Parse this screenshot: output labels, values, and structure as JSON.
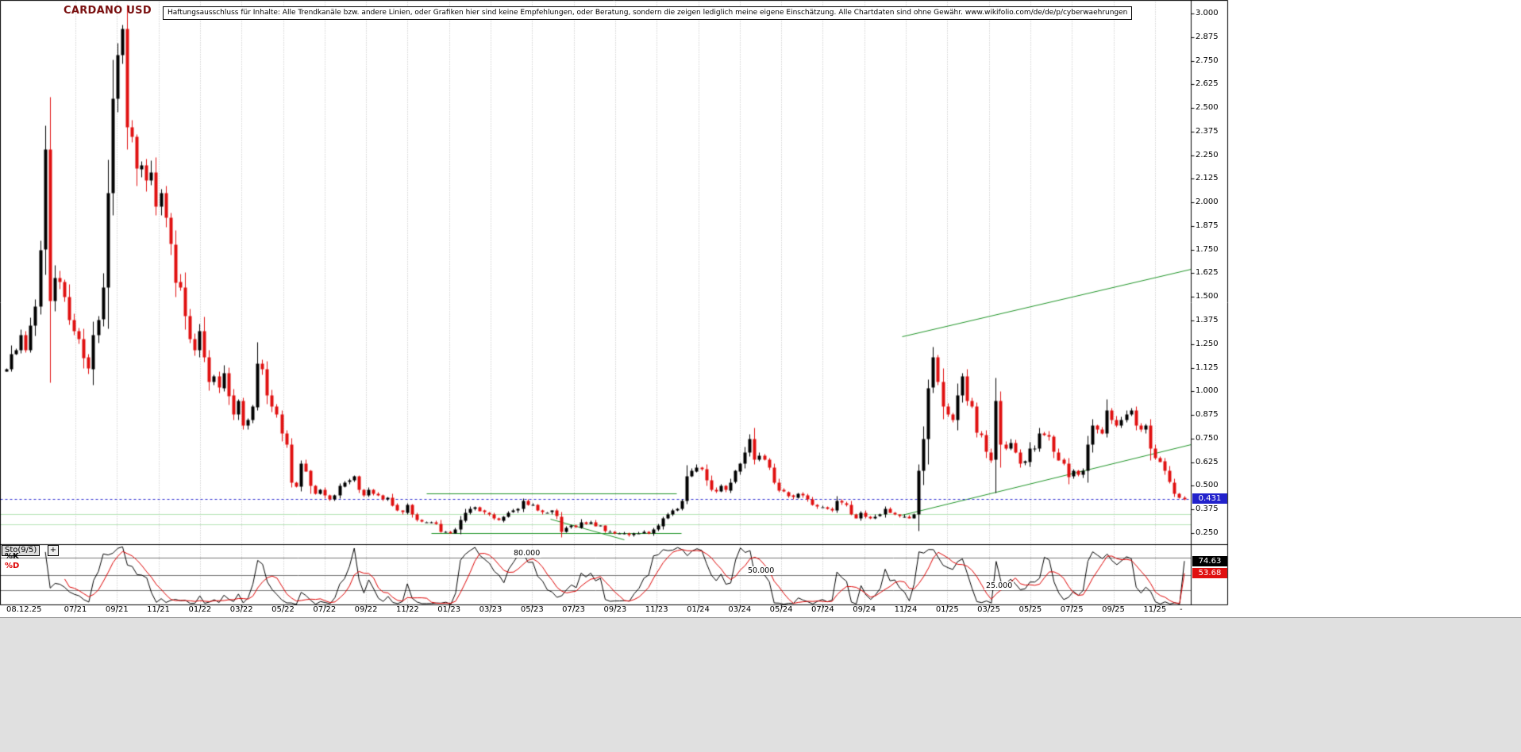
{
  "header": {
    "title": "CARDANO USD",
    "disclaimer": "Haftungsausschluss für Inhalte: Alle Trendkanäle bzw. andere Linien, oder Grafiken hier sind keine Empfehlungen, oder Beratung, sondern die zeigen lediglich meine eigene Einschätzung. Alle Chartdaten sind ohne Gewähr.  www.wikifolio.com/de/de/p/cyberwaehrungen"
  },
  "colors": {
    "up_candle": "#000000",
    "down_candle": "#e01010",
    "k_line": "#000000",
    "d_line": "#dd0000",
    "trend_line": "#1f9427",
    "pale_level": "#b5e3b5",
    "price_line": "#2a2ad0",
    "price_badge_bg": "#2222cc",
    "k_badge_bg": "#000000",
    "d_badge_bg": "#e01010",
    "title_color": "#7a1010",
    "grid": "#b8b8b8",
    "level_line": "#777777",
    "footer_bg": "#e0e0e0"
  },
  "chart_data": [
    {
      "type": "candlestick",
      "title": "CARDANO USD",
      "interval": "weekly",
      "y_axis": {
        "min": 0.25,
        "max": 3.0,
        "step": 0.125,
        "tick_labels": [
          "3.000",
          "2.875",
          "2.750",
          "2.625",
          "2.500",
          "2.375",
          "2.250",
          "2.125",
          "2.000",
          "1.875",
          "1.750",
          "1.625",
          "1.500",
          "1.375",
          "1.250",
          "1.125",
          "1.000",
          "0.875",
          "0.750",
          "0.625",
          "0.500",
          "0.375",
          "0.250"
        ]
      },
      "x_axis": {
        "date_stamp": "08.12.25",
        "tick_labels": [
          "07/21",
          "09/21",
          "11/21",
          "01/22",
          "03/22",
          "05/22",
          "07/22",
          "09/22",
          "11/22",
          "01/23",
          "03/23",
          "05/23",
          "07/23",
          "09/23",
          "11/23",
          "01/24",
          "03/24",
          "05/24",
          "07/24",
          "09/24",
          "11/24",
          "01/25",
          "03/25",
          "05/25",
          "07/25",
          "09/25",
          "11/25"
        ],
        "end_mark": "-"
      },
      "current_price": 0.431,
      "current_price_label": "0.431",
      "closes": [
        1.12,
        1.2,
        1.22,
        1.3,
        1.22,
        1.35,
        1.45,
        1.75,
        2.28,
        1.48,
        1.6,
        1.58,
        1.5,
        1.38,
        1.32,
        1.28,
        1.18,
        1.12,
        1.3,
        1.38,
        1.55,
        2.05,
        2.55,
        2.78,
        2.92,
        2.4,
        2.35,
        2.18,
        2.2,
        2.12,
        2.16,
        1.98,
        2.05,
        1.92,
        1.78,
        1.58,
        1.55,
        1.4,
        1.28,
        1.22,
        1.32,
        1.18,
        1.05,
        1.08,
        1.02,
        1.1,
        0.98,
        0.88,
        0.95,
        0.82,
        0.85,
        0.92,
        1.15,
        1.12,
        0.98,
        0.92,
        0.88,
        0.78,
        0.72,
        0.52,
        0.5,
        0.62,
        0.58,
        0.5,
        0.46,
        0.48,
        0.45,
        0.43,
        0.45,
        0.5,
        0.52,
        0.53,
        0.55,
        0.48,
        0.45,
        0.48,
        0.46,
        0.45,
        0.43,
        0.44,
        0.4,
        0.37,
        0.36,
        0.4,
        0.35,
        0.32,
        0.31,
        0.31,
        0.31,
        0.3,
        0.26,
        0.26,
        0.25,
        0.27,
        0.32,
        0.36,
        0.38,
        0.39,
        0.37,
        0.36,
        0.35,
        0.33,
        0.32,
        0.34,
        0.36,
        0.37,
        0.38,
        0.42,
        0.4,
        0.4,
        0.37,
        0.36,
        0.36,
        0.37,
        0.34,
        0.26,
        0.28,
        0.29,
        0.28,
        0.31,
        0.3,
        0.31,
        0.29,
        0.29,
        0.26,
        0.26,
        0.25,
        0.25,
        0.25,
        0.24,
        0.25,
        0.25,
        0.26,
        0.25,
        0.27,
        0.29,
        0.33,
        0.35,
        0.37,
        0.38,
        0.42,
        0.55,
        0.58,
        0.6,
        0.59,
        0.53,
        0.48,
        0.47,
        0.5,
        0.48,
        0.52,
        0.58,
        0.62,
        0.68,
        0.75,
        0.64,
        0.66,
        0.64,
        0.6,
        0.52,
        0.48,
        0.47,
        0.45,
        0.44,
        0.46,
        0.45,
        0.43,
        0.4,
        0.39,
        0.39,
        0.38,
        0.37,
        0.42,
        0.41,
        0.4,
        0.35,
        0.33,
        0.36,
        0.34,
        0.33,
        0.34,
        0.35,
        0.38,
        0.36,
        0.35,
        0.34,
        0.34,
        0.33,
        0.35,
        0.58,
        0.75,
        1.02,
        1.18,
        1.05,
        0.92,
        0.88,
        0.85,
        0.98,
        1.08,
        0.95,
        0.92,
        0.78,
        0.77,
        0.68,
        0.64,
        0.95,
        0.72,
        0.7,
        0.73,
        0.68,
        0.62,
        0.63,
        0.7,
        0.7,
        0.78,
        0.77,
        0.76,
        0.68,
        0.64,
        0.62,
        0.55,
        0.58,
        0.56,
        0.58,
        0.72,
        0.82,
        0.8,
        0.78,
        0.9,
        0.85,
        0.82,
        0.85,
        0.88,
        0.9,
        0.82,
        0.8,
        0.82,
        0.7,
        0.65,
        0.63,
        0.58,
        0.52,
        0.46,
        0.44,
        0.43
      ],
      "overlays": {
        "support_resistance_segments": [
          {
            "price": 0.46,
            "x_frac_start": 0.358,
            "x_frac_end": 0.568
          },
          {
            "price": 0.25,
            "x_frac_start": 0.362,
            "x_frac_end": 0.572
          }
        ],
        "trend_channel": [
          {
            "p_start": 1.29,
            "x_frac_start": 0.757,
            "p_end": 1.65,
            "x_frac_end": 1.0
          },
          {
            "p_start": 0.345,
            "x_frac_start": 0.757,
            "p_end": 0.72,
            "x_frac_end": 1.0
          }
        ],
        "down_line": {
          "p_start": 0.325,
          "x_frac_start": 0.462,
          "p_end": 0.215,
          "x_frac_end": 0.524
        },
        "pale_levels": [
          0.35,
          0.295
        ],
        "current_price_line": 0.431
      }
    },
    {
      "type": "line",
      "name_label": "Sto(9/5)",
      "expander_label": "+",
      "k_label": "%K",
      "d_label": "%D",
      "levels": [
        80,
        50,
        25
      ],
      "level_labels": [
        "80.000",
        "50.000",
        "25.000"
      ],
      "k_value": 74.63,
      "d_value": 53.68,
      "k_value_label": "74.63",
      "d_value_label": "53.68",
      "ylim": [
        0,
        100
      ],
      "series_derivation": "stochastic oscillator %K(9) and %D(5) computed from the weekly candlestick series above"
    }
  ]
}
